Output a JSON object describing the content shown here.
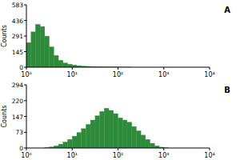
{
  "chart_data": [
    {
      "type": "histogram",
      "title": "A",
      "y_label": "Counts",
      "log": "x",
      "color": "#2e8b3c",
      "xlim": [
        1,
        10000
      ],
      "xticks": [
        {
          "value": 1,
          "label": "10⁰"
        },
        {
          "value": 10,
          "label": "10¹"
        },
        {
          "value": 100,
          "label": "10²"
        },
        {
          "value": 1000,
          "label": "10³"
        },
        {
          "value": 10000,
          "label": "10⁴"
        }
      ],
      "ylim": [
        0,
        583
      ],
      "yticks": [
        0,
        145,
        291,
        436,
        583
      ],
      "bins": [
        1,
        1.26,
        1.58,
        2,
        2.51,
        3.16,
        3.98,
        5.01,
        6.31,
        7.94,
        10,
        12.6,
        15.8,
        20,
        25.1,
        31.6,
        39.8,
        50.1,
        63.1,
        79.4,
        100,
        126,
        158,
        200,
        251,
        316,
        398,
        501,
        631,
        794,
        1000,
        1260,
        1580,
        2000,
        2510,
        3160,
        3980,
        5010,
        6310,
        7940,
        10000
      ],
      "values": [
        230,
        330,
        400,
        380,
        290,
        190,
        110,
        65,
        40,
        28,
        20,
        14,
        10,
        8,
        6,
        5,
        4,
        3,
        2,
        2,
        1,
        1,
        1,
        0,
        0,
        0,
        0,
        0,
        0,
        0,
        0,
        0,
        0,
        0,
        0,
        0,
        0,
        0,
        0,
        0
      ]
    },
    {
      "type": "histogram",
      "title": "B",
      "y_label": "Counts",
      "log": "x",
      "color": "#2e8b3c",
      "xlim": [
        1,
        10000
      ],
      "xticks": [
        {
          "value": 1,
          "label": "10⁰"
        },
        {
          "value": 10,
          "label": "10¹"
        },
        {
          "value": 100,
          "label": "10²"
        },
        {
          "value": 1000,
          "label": "10³"
        },
        {
          "value": 10000,
          "label": "10⁴"
        }
      ],
      "ylim": [
        0,
        294
      ],
      "yticks": [
        0,
        73,
        147,
        220,
        294
      ],
      "bins": [
        1,
        1.26,
        1.58,
        2,
        2.51,
        3.16,
        3.98,
        5.01,
        6.31,
        7.94,
        10,
        12.6,
        15.8,
        20,
        25.1,
        31.6,
        39.8,
        50.1,
        63.1,
        79.4,
        100,
        126,
        158,
        200,
        251,
        316,
        398,
        501,
        631,
        794,
        1000,
        1260,
        1580,
        2000,
        2510,
        3160,
        3980,
        5010,
        6310,
        7940,
        10000
      ],
      "values": [
        0,
        0,
        0,
        0,
        2,
        5,
        10,
        18,
        28,
        40,
        55,
        72,
        90,
        110,
        130,
        150,
        170,
        185,
        175,
        160,
        140,
        130,
        120,
        100,
        80,
        60,
        40,
        22,
        10,
        4,
        1,
        0,
        0,
        0,
        0,
        0,
        0,
        0,
        0,
        0
      ]
    }
  ]
}
